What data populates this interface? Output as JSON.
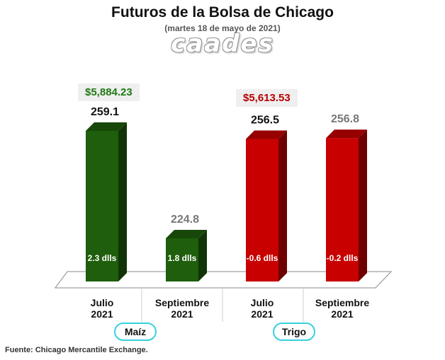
{
  "chart_data": {
    "type": "bar",
    "title": "Futuros de la Bolsa de Chicago",
    "subtitle": "(martes 18 de mayo de 2021)",
    "categories": [
      "Julio 2021",
      "Septiembre 2021",
      "Julio 2021",
      "Septiembre 2021"
    ],
    "category_lines": [
      [
        "Julio",
        "2021"
      ],
      [
        "Septiembre",
        "2021"
      ],
      [
        "Julio",
        "2021"
      ],
      [
        "Septiembre",
        "2021"
      ]
    ],
    "values": [
      259.1,
      224.8,
      256.5,
      256.8
    ],
    "value_labels": [
      "259.1",
      "224.8",
      "256.5",
      "256.8"
    ],
    "changes": [
      "2.3 dlls",
      "1.8 dlls",
      "-0.6 dlls",
      "-0.2 dlls"
    ],
    "groups": [
      {
        "name": "Maíz",
        "price": "$5,884.23",
        "color": "#1e5e0c",
        "indices": [
          0,
          1
        ]
      },
      {
        "name": "Trigo",
        "price": "$5,613.53",
        "color": "#c80000",
        "indices": [
          2,
          3
        ]
      }
    ],
    "xlabel": "",
    "ylabel": ""
  },
  "logo_text": "caades",
  "source": "Fuente: Chicago Mercantile Exchange.",
  "colors": {
    "corn": "#1e5e0c",
    "wheat": "#c80000",
    "highlight_label": "#111111",
    "muted_label": "#777777",
    "accent_outline": "#37d0e0"
  }
}
